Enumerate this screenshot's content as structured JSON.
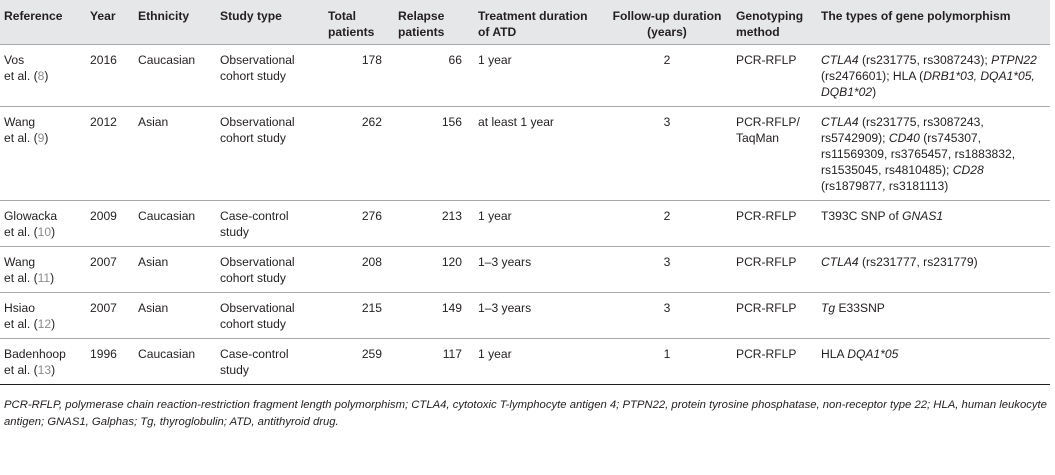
{
  "headers": {
    "reference": "Reference",
    "year": "Year",
    "ethnicity": "Ethnicity",
    "study_type": "Study type",
    "total_patients": "Total patients",
    "relapse_patients": "Relapse patients",
    "treatment_duration": "Treatment duration of ATD",
    "followup_duration": "Follow-up duration (years)",
    "genotyping_method": "Genotyping method",
    "polymorphism": "The types of gene polymorphism"
  },
  "rows": [
    {
      "ref_author": "Vos",
      "ref_etal": "et al. (",
      "ref_num": "8",
      "ref_close": ")",
      "year": "2016",
      "ethnicity": "Caucasian",
      "study_type": "Observational cohort study",
      "total": "178",
      "relapse": "66",
      "treatment": "1 year",
      "followup": "2",
      "method": "PCR-RFLP",
      "poly": {
        "g1": "CTLA4",
        "t1": " (rs231775, rs3087243); ",
        "g2": "PTPN22",
        "t2": " (rs2476601); HLA (",
        "g3": "DRB1*03, DQA1*05, DQB1*02",
        "t3": ")"
      }
    },
    {
      "ref_author": "Wang",
      "ref_etal": "et al. (",
      "ref_num": "9",
      "ref_close": ")",
      "year": "2012",
      "ethnicity": "Asian",
      "study_type": "Observational cohort study",
      "total": "262",
      "relapse": "156",
      "treatment": "at least 1 year",
      "followup": "3",
      "method": "PCR-RFLP/ TaqMan",
      "poly": {
        "g1": "CTLA4",
        "t1": " (rs231775, rs3087243, rs5742909); ",
        "g2": "CD40",
        "t2": " (rs745307, rs11569309, rs3765457, rs1883832, rs1535045, rs4810485); ",
        "g3": "CD28",
        "t3": " (rs1879877, rs3181113)"
      }
    },
    {
      "ref_author": "Glowacka",
      "ref_etal": "et al. (",
      "ref_num": "10",
      "ref_close": ")",
      "year": "2009",
      "ethnicity": "Caucasian",
      "study_type": "Case-control study",
      "total": "276",
      "relapse": "213",
      "treatment": "1 year",
      "followup": "2",
      "method": "PCR-RFLP",
      "poly": {
        "t0": "T393C SNP of ",
        "g1": "GNAS1"
      }
    },
    {
      "ref_author": "Wang",
      "ref_etal": "et al. (",
      "ref_num": "11",
      "ref_close": ")",
      "year": "2007",
      "ethnicity": "Asian",
      "study_type": "Observational cohort study",
      "total": "208",
      "relapse": "120",
      "treatment": "1–3 years",
      "followup": "3",
      "method": "PCR-RFLP",
      "poly": {
        "g1": "CTLA4",
        "t1": " (rs231777, rs231779)"
      }
    },
    {
      "ref_author": "Hsiao",
      "ref_etal": "et al. (",
      "ref_num": "12",
      "ref_close": ")",
      "year": "2007",
      "ethnicity": "Asian",
      "study_type": "Observational cohort study",
      "total": "215",
      "relapse": "149",
      "treatment": "1–3 years",
      "followup": "3",
      "method": "PCR-RFLP",
      "poly": {
        "g1": "Tg",
        "t1": " E33SNP"
      }
    },
    {
      "ref_author": "Badenhoop",
      "ref_etal": "et al. (",
      "ref_num": "13",
      "ref_close": ")",
      "year": "1996",
      "ethnicity": "Caucasian",
      "study_type": "Case-control study",
      "total": "259",
      "relapse": "117",
      "treatment": "1 year",
      "followup": "1",
      "method": "PCR-RFLP",
      "poly": {
        "t0": "HLA ",
        "g1": "DQA1*05"
      }
    }
  ],
  "footnote": "PCR-RFLP, polymerase chain reaction-restriction fragment length polymorphism; CTLA4, cytotoxic T-lymphocyte antigen 4; PTPN22, protein tyrosine phosphatase, non-receptor type 22; HLA, human leukocyte antigen; GNAS1, Galphas; Tg, thyroglobulin; ATD, antithyroid drug.",
  "colors": {
    "header_bg": "#e6e7e8",
    "rule": "#a7a9ac",
    "text": "#231f20",
    "reference_link": "#8c8c8c"
  }
}
